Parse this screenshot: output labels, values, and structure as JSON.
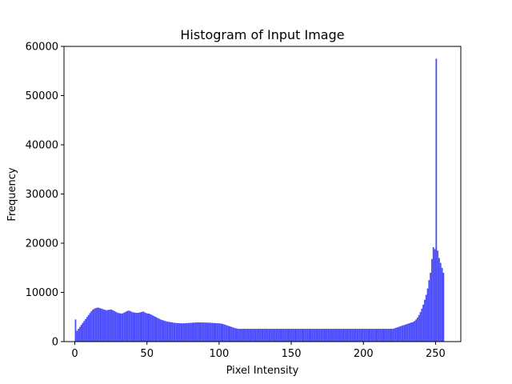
{
  "chart_data": {
    "type": "bar",
    "title": "Histogram of Input Image",
    "xlabel": "Pixel Intensity",
    "ylabel": "Frequency",
    "xlim": [
      -7.5,
      267.5
    ],
    "ylim": [
      0,
      60000
    ],
    "xticks": [
      "0",
      "50",
      "100",
      "150",
      "200",
      "250"
    ],
    "yticks": [
      "0",
      "10000",
      "20000",
      "30000",
      "40000",
      "50000",
      "60000"
    ],
    "bar_color": "#4c4cff",
    "grid": false,
    "bins_start": 0,
    "values": [
      4500,
      2200,
      2600,
      3000,
      3400,
      3800,
      4200,
      4600,
      5000,
      5400,
      5800,
      6200,
      6500,
      6700,
      6800,
      6900,
      6900,
      6800,
      6700,
      6600,
      6500,
      6400,
      6400,
      6450,
      6500,
      6500,
      6350,
      6200,
      6050,
      5900,
      5800,
      5750,
      5700,
      5800,
      5950,
      6100,
      6250,
      6300,
      6200,
      6050,
      5950,
      5900,
      5850,
      5850,
      5900,
      5950,
      6050,
      6100,
      5950,
      5800,
      5700,
      5700,
      5550,
      5400,
      5250,
      5100,
      4950,
      4800,
      4650,
      4500,
      4400,
      4300,
      4200,
      4100,
      4050,
      4000,
      3950,
      3900,
      3850,
      3800,
      3780,
      3760,
      3740,
      3720,
      3700,
      3720,
      3740,
      3760,
      3780,
      3800,
      3820,
      3840,
      3860,
      3880,
      3900,
      3900,
      3900,
      3900,
      3890,
      3880,
      3870,
      3860,
      3850,
      3840,
      3820,
      3800,
      3780,
      3760,
      3740,
      3720,
      3700,
      3650,
      3600,
      3500,
      3400,
      3300,
      3200,
      3100,
      3000,
      2900,
      2800,
      2700,
      2650,
      2600,
      2600,
      2600,
      2600,
      2600,
      2600,
      2600,
      2600,
      2600,
      2600,
      2600,
      2600,
      2600,
      2600,
      2600,
      2600,
      2600,
      2600,
      2600,
      2600,
      2600,
      2600,
      2600,
      2600,
      2600,
      2600,
      2600,
      2600,
      2600,
      2600,
      2600,
      2600,
      2600,
      2600,
      2600,
      2600,
      2600,
      2600,
      2600,
      2600,
      2600,
      2600,
      2600,
      2600,
      2600,
      2600,
      2600,
      2600,
      2600,
      2600,
      2600,
      2600,
      2600,
      2600,
      2600,
      2600,
      2600,
      2600,
      2600,
      2600,
      2600,
      2600,
      2600,
      2600,
      2600,
      2600,
      2600,
      2600,
      2600,
      2600,
      2600,
      2600,
      2600,
      2600,
      2600,
      2600,
      2600,
      2600,
      2600,
      2600,
      2600,
      2600,
      2600,
      2600,
      2600,
      2600,
      2600,
      2600,
      2600,
      2600,
      2600,
      2600,
      2600,
      2600,
      2600,
      2600,
      2600,
      2600,
      2600,
      2600,
      2600,
      2600,
      2600,
      2600,
      2600,
      2600,
      2600,
      2600,
      2700,
      2800,
      2900,
      3000,
      3100,
      3200,
      3300,
      3400,
      3500,
      3600,
      3700,
      3800,
      3900,
      4000,
      4200,
      4500,
      4900,
      5400,
      6000,
      6700,
      7500,
      8500,
      9500,
      10800,
      12500,
      14000,
      16800,
      19200,
      18800,
      57500,
      18500,
      17000,
      16000,
      15000,
      14000
    ]
  }
}
